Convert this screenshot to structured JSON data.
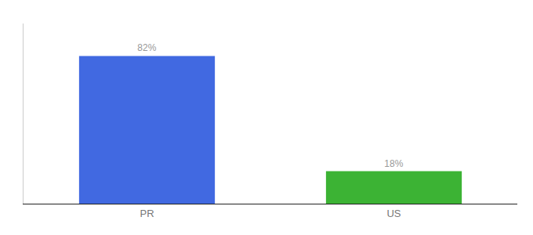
{
  "chart_data": {
    "type": "bar",
    "categories": [
      "PR",
      "US"
    ],
    "values": [
      82,
      18
    ],
    "value_labels": [
      "82%",
      "18%"
    ],
    "colors": [
      "#4169e1",
      "#3cb334"
    ],
    "ylim": [
      0,
      100
    ],
    "data_labels": true,
    "tick_labels": "x",
    "grid": false
  }
}
